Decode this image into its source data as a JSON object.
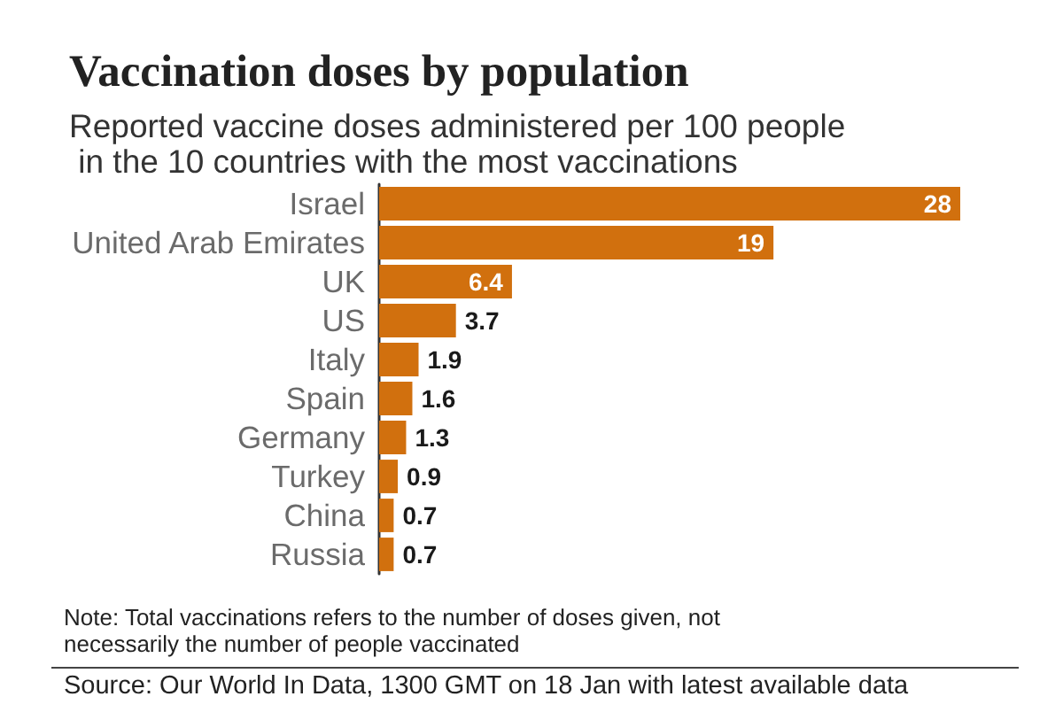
{
  "chart_data": {
    "type": "bar",
    "orientation": "horizontal",
    "title": "Vaccination doses by population",
    "subtitle": "Reported vaccine doses administered per 100 people in the 10 countries with the most vaccinations",
    "categories": [
      "Israel",
      "United Arab Emirates",
      "UK",
      "US",
      "Italy",
      "Spain",
      "Germany",
      "Turkey",
      "China",
      "Russia"
    ],
    "values": [
      28,
      19,
      6.4,
      3.7,
      1.9,
      1.6,
      1.3,
      0.9,
      0.7,
      0.7
    ],
    "color": "#d1700e",
    "data_labels": true,
    "tick_labels": "y",
    "annotations": [
      "Note: Total vaccinations refers to the number of doses given, not necessarily the number of people vaccinated",
      "Source: Our World In Data, 1300 GMT on 18 Jan with latest available data"
    ]
  }
}
